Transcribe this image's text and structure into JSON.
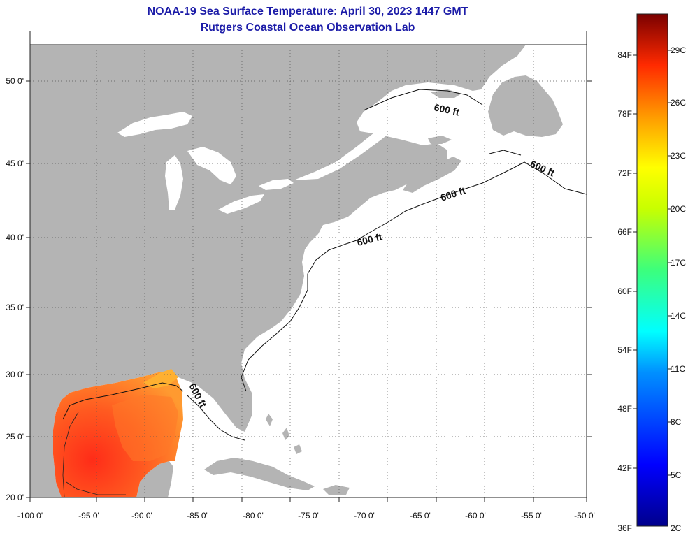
{
  "title_line1": "NOAA-19 Sea Surface Temperature:  April 30, 2023 1447 GMT",
  "title_line2": "Rutgers Coastal Ocean Observation Lab",
  "map": {
    "lon_labels": [
      "-100 0'",
      "-95 0'",
      "-90 0'",
      "-85 0'",
      "-80 0'",
      "-75 0'",
      "-70 0'",
      "-65 0'",
      "-60 0'",
      "-55 0'",
      "-50 0'"
    ],
    "lat_labels": [
      "50 0'",
      "45 0'",
      "40 0'",
      "35 0'",
      "30 0'",
      "25 0'",
      "20 0'"
    ],
    "isobath_labels": [
      "600 ft",
      "600 ft",
      "600 ft",
      "600 ft",
      "600 ft"
    ],
    "land_color": "#b4b4b4",
    "ocean_color": "#ffffff"
  },
  "colorbar": {
    "fahrenheit_labels": [
      "84F",
      "78F",
      "72F",
      "66F",
      "60F",
      "54F",
      "48F",
      "42F",
      "36F"
    ],
    "celsius_labels": [
      "29C",
      "26C",
      "23C",
      "20C",
      "17C",
      "14C",
      "11C",
      "8C",
      "5C",
      "2C"
    ]
  }
}
